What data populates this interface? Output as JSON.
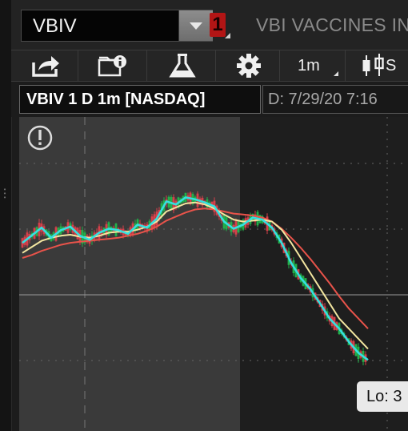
{
  "header": {
    "symbol": "VBIV",
    "link_badge": "1",
    "company_name": "VBI VACCINES INC"
  },
  "toolbar": {
    "timeframe": "1m",
    "style_label": "S",
    "icons": [
      "share-icon",
      "info-folder-icon",
      "flask-icon",
      "gear-icon",
      "timeframe-selector",
      "candlestick-icon"
    ]
  },
  "chart": {
    "title": "VBIV 1 D 1m [NASDAQ]",
    "date_label": "D: 7/29/20 7:16",
    "lo_label": "Lo: 3",
    "alert_icon": "exclamation-circle-icon"
  },
  "colors": {
    "up": "#22b04b",
    "down": "#d6404a",
    "ema_fast": "#35e0e0",
    "sma_mid": "#f3e6a0",
    "sma_slow": "#e8534a",
    "premarket_bg": "#3a3a3a",
    "regular_bg": "#1e1e1e"
  },
  "chart_data": {
    "type": "line",
    "series": [
      {
        "values": [
          30,
          45,
          60,
          40,
          55,
          62,
          44,
          36,
          50,
          58,
          55,
          48,
          66,
          60,
          78,
          112,
          106,
          120,
          116,
          110,
          102,
          72,
          58,
          66,
          80,
          76,
          60,
          30,
          -10,
          -40,
          -62,
          -90,
          -120,
          -140,
          -166,
          -188,
          -202
        ]
      },
      {
        "values": [
          10,
          22,
          34,
          40,
          44,
          46,
          42,
          40,
          44,
          50,
          52,
          52,
          56,
          62,
          72,
          92,
          100,
          108,
          110,
          106,
          98,
          86,
          76,
          72,
          74,
          76,
          72,
          56,
          30,
          0,
          -30,
          -60,
          -90,
          -120,
          -140,
          -160,
          -180
        ]
      },
      {
        "values": [
          0,
          6,
          14,
          20,
          26,
          30,
          32,
          34,
          36,
          38,
          40,
          44,
          48,
          54,
          62,
          74,
          82,
          90,
          96,
          98,
          96,
          92,
          88,
          86,
          84,
          80,
          72,
          58,
          40,
          20,
          -2,
          -26,
          -50,
          -76,
          -100,
          -120,
          -140
        ]
      }
    ]
  }
}
